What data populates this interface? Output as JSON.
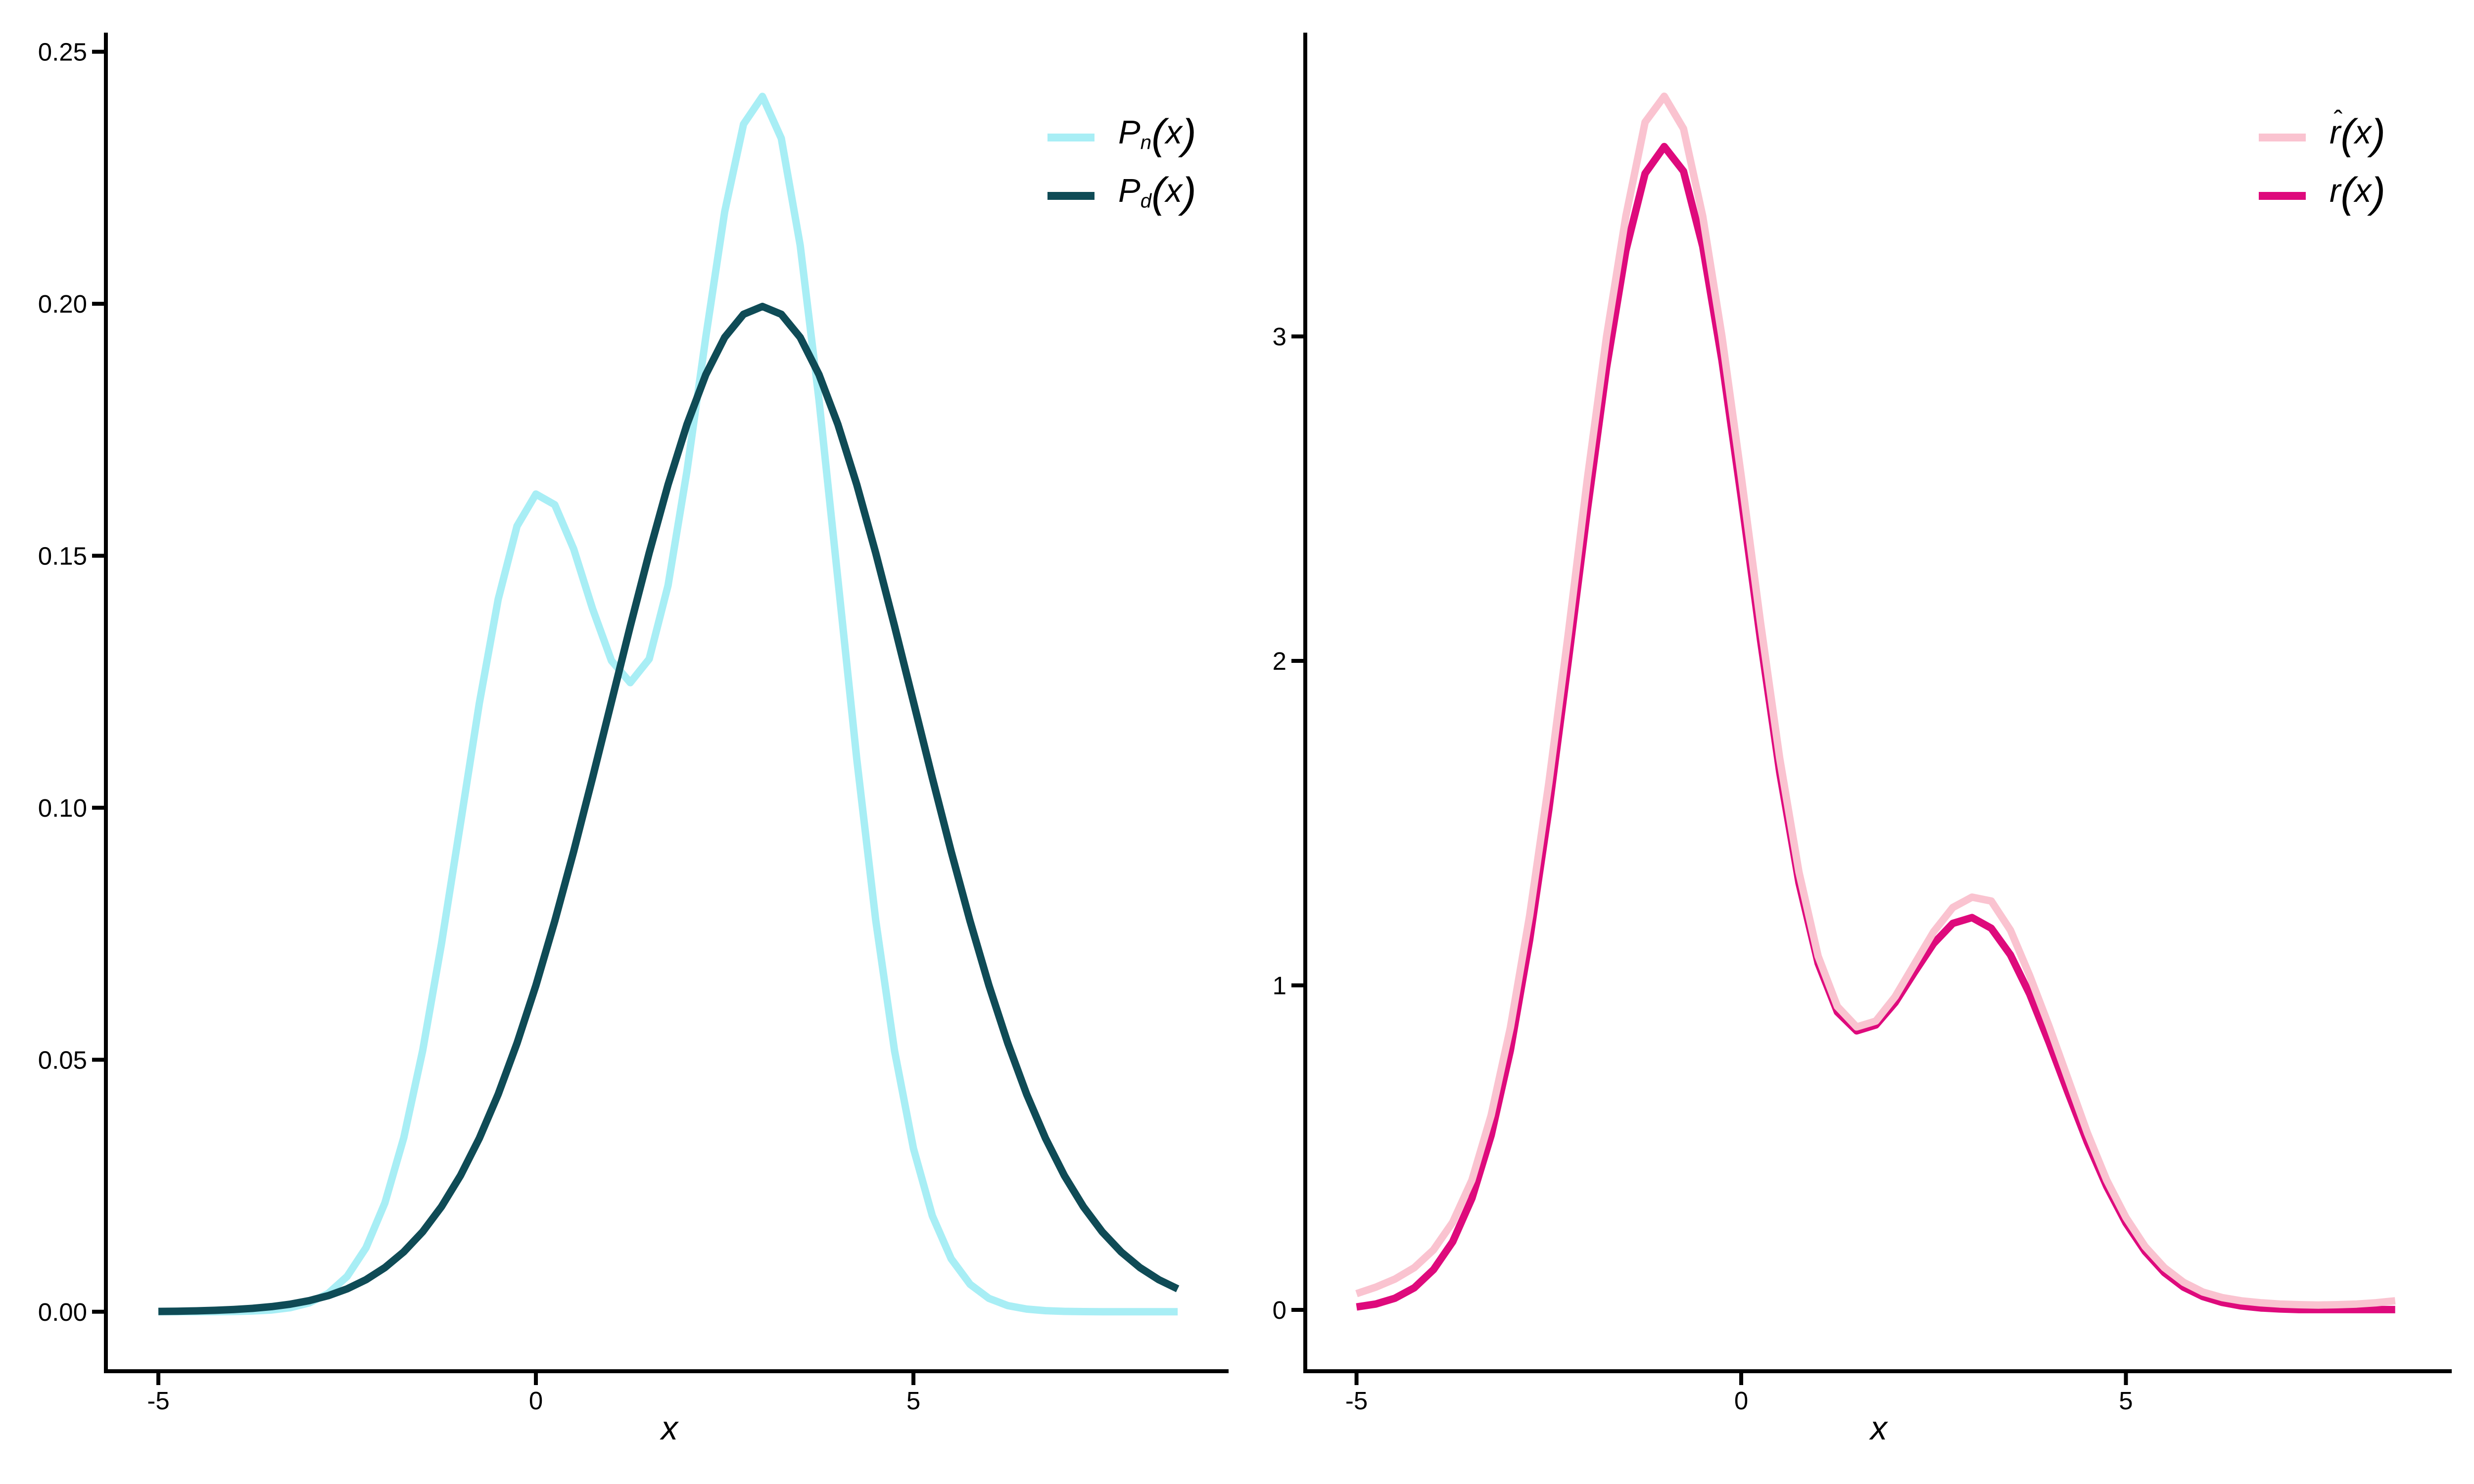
{
  "figure": {
    "background": "#ffffff",
    "text_color": "#000000"
  },
  "chart_data": [
    {
      "type": "line",
      "panel": "left",
      "title": "",
      "xlabel": "x",
      "ylabel": "",
      "grid": false,
      "legend_position": "top-right-inside",
      "xlim": [
        -5.695,
        9.174
      ],
      "ylim": [
        -0.0118,
        0.2534
      ],
      "x_ticks": {
        "values": [
          -5,
          0,
          5
        ],
        "labels": [
          "-5",
          "0",
          "5"
        ]
      },
      "y_ticks": {
        "values": [
          0,
          0.05,
          0.1,
          0.15,
          0.2,
          0.25
        ],
        "labels": [
          "0.00",
          "0.05",
          "0.10",
          "0.15",
          "0.20",
          "0.25"
        ]
      },
      "x": [
        -5,
        -4.75,
        -4.5,
        -4.25,
        -4,
        -3.75,
        -3.5,
        -3.25,
        -3,
        -2.75,
        -2.5,
        -2.25,
        -2,
        -1.75,
        -1.5,
        -1.25,
        -1,
        -0.75,
        -0.5,
        -0.25,
        0,
        0.25,
        0.5,
        0.75,
        1,
        1.25,
        1.5,
        1.75,
        2,
        2.25,
        2.5,
        2.75,
        3,
        3.25,
        3.5,
        3.75,
        4,
        4.25,
        4.5,
        4.75,
        5,
        5.25,
        5.5,
        5.75,
        6,
        6.25,
        6.5,
        6.75,
        7,
        7.25,
        7.5,
        7.75,
        8,
        8.25,
        8.5
      ],
      "series": [
        {
          "name": "P_n(x)",
          "color": "#A8EEF5",
          "values": [
            1e-06,
            2e-06,
            6e-06,
            1.9e-05,
            5.4e-05,
            0.000141,
            0.000349,
            0.000812,
            0.001773,
            0.003636,
            0.007012,
            0.012696,
            0.021596,
            0.034512,
            0.051808,
            0.07306,
            0.096788,
            0.120668,
            0.141352,
            0.155885,
            0.162235,
            0.160122,
            0.151346,
            0.1395,
            0.129182,
            0.124828,
            0.12952,
            0.144102,
            0.166778,
            0.19338,
            0.218254,
            0.235638,
            0.241137,
            0.232814,
            0.211591,
            0.180825,
            0.145236,
            0.109609,
            0.077718,
            0.051773,
            0.032395,
            0.019045,
            0.01052,
            0.005456,
            0.002661,
            0.001218,
            0.000524,
            0.000212,
            8e-05,
            2.9e-05,
            1e-05,
            3e-06,
            1e-06,
            0,
            0
          ]
        },
        {
          "name": "P_d(x)",
          "color": "#0F4B56",
          "values": [
            6.7e-05,
            0.00011,
            0.000177,
            0.00028,
            0.000437,
            0.00067,
            0.001015,
            0.00151,
            0.002216,
            0.00319,
            0.004545,
            0.00636,
            0.008765,
            0.011885,
            0.01587,
            0.02086,
            0.026995,
            0.03439,
            0.04314,
            0.05328,
            0.06476,
            0.077515,
            0.091325,
            0.10593,
            0.120985,
            0.13603,
            0.15057,
            0.16409,
            0.176035,
            0.18593,
            0.193335,
            0.197915,
            0.19947,
            0.197915,
            0.193335,
            0.18593,
            0.176035,
            0.16409,
            0.15057,
            0.13603,
            0.120985,
            0.10593,
            0.091325,
            0.077515,
            0.06476,
            0.05328,
            0.04314,
            0.03439,
            0.026995,
            0.02086,
            0.01587,
            0.011885,
            0.008765,
            0.00636,
            0.004545
          ]
        }
      ],
      "legend": [
        {
          "pre": "P",
          "hat": "",
          "sub": "n",
          "open": "(",
          "var": "x",
          "close": ")",
          "color": "#A8EEF5"
        },
        {
          "pre": "P",
          "hat": "",
          "sub": "d",
          "open": "(",
          "var": "x",
          "close": ")",
          "color": "#0F4B56"
        }
      ]
    },
    {
      "type": "line",
      "panel": "right",
      "title": "",
      "xlabel": "x",
      "ylabel": "",
      "grid": false,
      "legend_position": "top-right-inside",
      "xlim": [
        -5.666,
        9.235
      ],
      "ylim": [
        -0.189,
        3.93
      ],
      "x_ticks": {
        "values": [
          -5,
          0,
          5
        ],
        "labels": [
          "-5",
          "0",
          "5"
        ]
      },
      "y_ticks": {
        "values": [
          0,
          1,
          2,
          3
        ],
        "labels": [
          "0",
          "1",
          "2",
          "3"
        ]
      },
      "x": [
        -5,
        -4.75,
        -4.5,
        -4.25,
        -4,
        -3.75,
        -3.5,
        -3.25,
        -3,
        -2.75,
        -2.5,
        -2.25,
        -2,
        -1.75,
        -1.5,
        -1.25,
        -1,
        -0.75,
        -0.5,
        -0.25,
        0,
        0.25,
        0.5,
        0.75,
        1,
        1.25,
        1.5,
        1.75,
        2,
        2.25,
        2.5,
        2.75,
        3,
        3.25,
        3.5,
        3.75,
        4,
        4.25,
        4.5,
        4.75,
        5,
        5.25,
        5.5,
        5.75,
        6,
        6.25,
        6.5,
        6.75,
        7,
        7.25,
        7.5,
        7.75,
        8,
        8.25,
        8.5
      ],
      "series": [
        {
          "name": "r(x)",
          "color": "#DE0A7C",
          "values": [
            0.009,
            0.018,
            0.036,
            0.068,
            0.124,
            0.21,
            0.344,
            0.538,
            0.8,
            1.14,
            1.543,
            1.996,
            2.464,
            2.904,
            3.264,
            3.502,
            3.585,
            3.509,
            3.277,
            2.926,
            2.505,
            2.066,
            1.657,
            1.317,
            1.068,
            0.918,
            0.86,
            0.878,
            0.947,
            1.04,
            1.129,
            1.191,
            1.209,
            1.176,
            1.094,
            0.973,
            0.825,
            0.668,
            0.516,
            0.381,
            0.268,
            0.18,
            0.115,
            0.07,
            0.041,
            0.023,
            0.012,
            0.006,
            0.003,
            0.001,
            0.001,
            0.001,
            0.001,
            0.001,
            0.001
          ]
        },
        {
          "name": "r̂(x)",
          "color": "#FAC3D0",
          "values": [
            0.05,
            0.07,
            0.095,
            0.13,
            0.185,
            0.27,
            0.4,
            0.6,
            0.87,
            1.215,
            1.625,
            2.08,
            2.56,
            3.0,
            3.37,
            3.66,
            3.74,
            3.64,
            3.37,
            3.0,
            2.57,
            2.12,
            1.7,
            1.35,
            1.09,
            0.935,
            0.872,
            0.89,
            0.965,
            1.065,
            1.165,
            1.24,
            1.272,
            1.26,
            1.17,
            1.03,
            0.875,
            0.71,
            0.545,
            0.4,
            0.285,
            0.195,
            0.13,
            0.085,
            0.055,
            0.038,
            0.028,
            0.022,
            0.018,
            0.016,
            0.015,
            0.016,
            0.018,
            0.022,
            0.028
          ]
        }
      ],
      "legend": [
        {
          "pre": "r",
          "hat": "ˆ",
          "sub": "",
          "open": "(",
          "var": "x",
          "close": ")",
          "color": "#FAC3D0"
        },
        {
          "pre": "r",
          "hat": "",
          "sub": "",
          "open": "(",
          "var": "x",
          "close": ")",
          "color": "#DE0A7C"
        }
      ]
    }
  ]
}
